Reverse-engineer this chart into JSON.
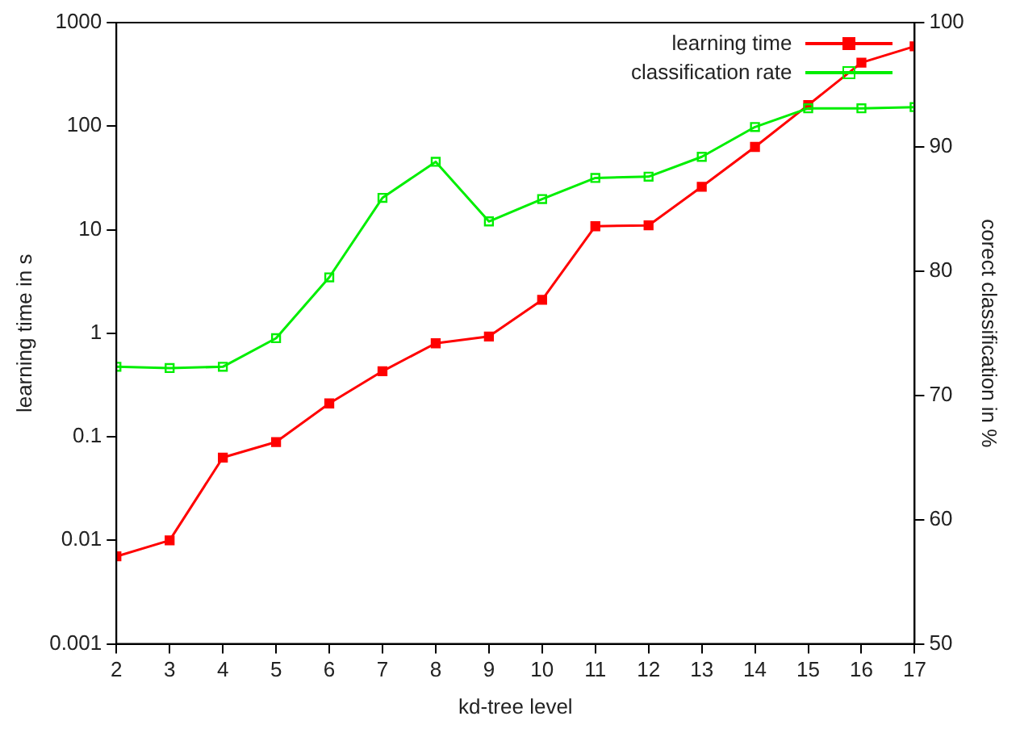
{
  "chart_data": {
    "type": "line",
    "xlabel": "kd-tree level",
    "ylabel": "learning time in s",
    "y2label": "corect classification in %",
    "x": [
      2,
      3,
      4,
      5,
      6,
      7,
      8,
      9,
      10,
      11,
      12,
      13,
      14,
      15,
      16,
      17
    ],
    "series": [
      {
        "name": "learning time",
        "color": "#ff0000",
        "values": [
          0.007,
          0.01,
          0.063,
          0.089,
          0.21,
          0.43,
          0.8,
          0.93,
          2.1,
          10.8,
          11,
          26,
          63,
          160,
          410,
          590
        ]
      },
      {
        "name": "classification rate",
        "color": "#00ee00",
        "axis": "y2",
        "values": [
          72.3,
          72.2,
          72.3,
          74.6,
          79.5,
          85.9,
          88.8,
          84.0,
          85.8,
          87.5,
          87.6,
          89.2,
          91.6,
          93.1,
          93.1,
          93.2
        ]
      }
    ],
    "xlim": [
      2,
      17
    ],
    "xticks": [
      2,
      3,
      4,
      5,
      6,
      7,
      8,
      9,
      10,
      11,
      12,
      13,
      14,
      15,
      16,
      17
    ],
    "ylim": [
      0.001,
      1000
    ],
    "yticks": [
      0.001,
      0.01,
      0.1,
      1,
      10,
      100,
      1000
    ],
    "y2lim": [
      50,
      100
    ],
    "y2ticks": [
      50,
      60,
      70,
      80,
      90,
      100
    ],
    "log": "y",
    "grid": false,
    "legend": "top right",
    "marker": "square",
    "line_style": "solid"
  }
}
